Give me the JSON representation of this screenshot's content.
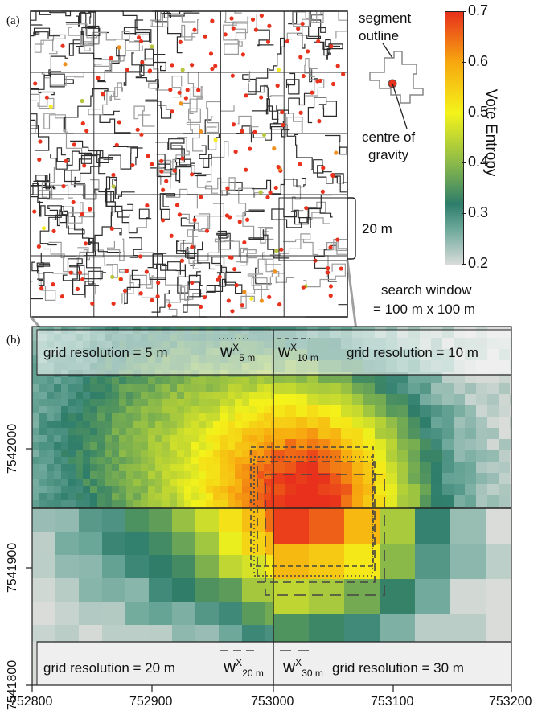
{
  "panel_a": {
    "label": "(a)",
    "annotation_segment": "segment\noutline",
    "annotation_centre": "centre of\ngravity",
    "scale_label": "20 m",
    "search_window": [
      "search window",
      "= 100 m x 100 m"
    ]
  },
  "colorbar": {
    "title": "Vote Entropy",
    "ticks": [
      "0.7",
      "0.6",
      "0.5",
      "0.4",
      "0.3",
      "0.2"
    ],
    "colors": [
      "#d9dcd9",
      "#2e7d6b",
      "#9bc43c",
      "#f4f31a",
      "#f7a80f",
      "#e8301c"
    ]
  },
  "panel_b": {
    "label": "(b)",
    "bands": {
      "top_left": "grid resolution = 5 m",
      "top_right": "grid resolution = 10 m",
      "bottom_left": "grid resolution = 20 m",
      "bottom_right": "grid resolution = 30 m"
    },
    "windows": {
      "w5": {
        "main": "w",
        "sup": "X",
        "sub": "5 m"
      },
      "w10": {
        "main": "w",
        "sup": "X",
        "sub": "10 m"
      },
      "w20": {
        "main": "w",
        "sup": "X",
        "sub": "20 m"
      },
      "w30": {
        "main": "w",
        "sup": "X",
        "sub": "30 m"
      }
    },
    "x_ticks": [
      "752800",
      "752900",
      "753000",
      "753100",
      "753200"
    ],
    "y_ticks": [
      "7542000",
      "7541900",
      "7541800"
    ]
  }
}
